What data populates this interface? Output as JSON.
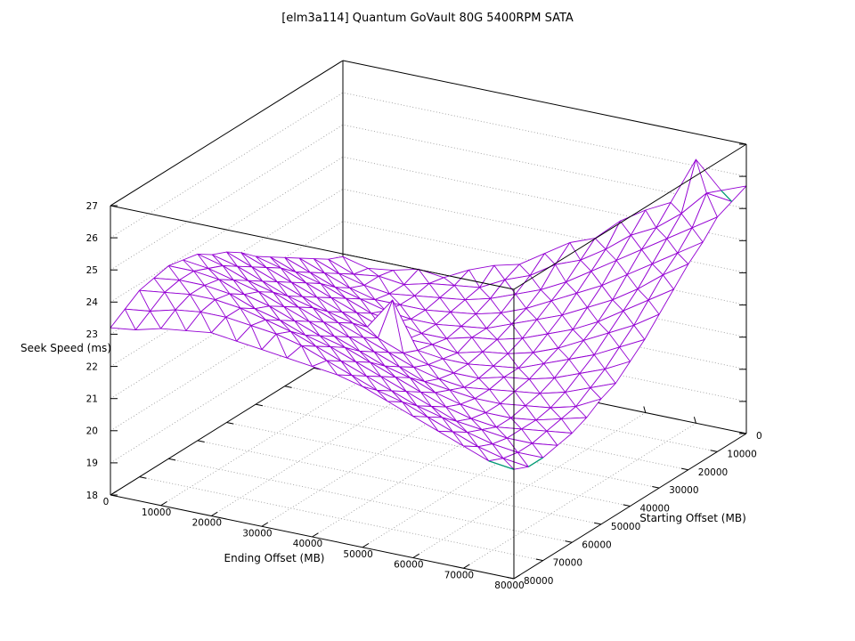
{
  "chart_data": {
    "type": "surface3d",
    "title": "[elm3a114] Quantum GoVault 80G 5400RPM SATA",
    "xlabel": "Ending Offset (MB)",
    "ylabel": "Starting Offset (MB)",
    "zlabel": "Seek Speed (ms)",
    "x_range": [
      0,
      80000
    ],
    "y_range": [
      0,
      80000
    ],
    "z_range": [
      18,
      27
    ],
    "x_ticks": [
      0,
      10000,
      20000,
      30000,
      40000,
      50000,
      60000,
      70000,
      80000
    ],
    "y_ticks": [
      0,
      10000,
      20000,
      30000,
      40000,
      50000,
      60000,
      70000,
      80000
    ],
    "z_ticks": [
      18,
      19,
      20,
      21,
      22,
      23,
      24,
      25,
      26,
      27
    ],
    "grid": true,
    "legend": "none",
    "x": [
      0,
      5000,
      10000,
      15000,
      20000,
      25000,
      30000,
      35000,
      40000,
      45000,
      50000,
      55000,
      60000,
      65000,
      70000,
      75000,
      80000
    ],
    "y": [
      0,
      5000,
      10000,
      15000,
      20000,
      25000,
      30000,
      35000,
      40000,
      45000,
      50000,
      55000,
      60000,
      65000,
      70000,
      75000,
      80000
    ],
    "z_rows_by_starting_offset": [
      [
        20.9,
        20.7,
        20.8,
        21.0,
        20.9,
        21.3,
        21.6,
        21.8,
        22.3,
        22.8,
        23.1,
        23.8,
        24.3,
        24.7,
        26.2,
        25.4,
        25.7
      ],
      [
        21.1,
        20.8,
        20.9,
        20.8,
        21.0,
        21.1,
        21.2,
        21.6,
        21.9,
        22.4,
        22.7,
        23.2,
        23.8,
        24.2,
        24.8,
        25.6,
        25.5
      ],
      [
        21.4,
        21.1,
        20.9,
        20.8,
        20.9,
        21.0,
        21.1,
        21.3,
        21.6,
        21.9,
        22.3,
        22.8,
        23.3,
        23.8,
        24.3,
        24.8,
        25.3
      ],
      [
        21.7,
        21.4,
        21.1,
        20.9,
        20.9,
        20.9,
        21.0,
        21.1,
        21.3,
        21.6,
        22.0,
        22.4,
        22.8,
        23.3,
        23.8,
        24.3,
        24.8
      ],
      [
        22.0,
        21.7,
        21.4,
        21.2,
        21.0,
        20.9,
        20.9,
        21.0,
        21.1,
        21.4,
        21.7,
        22.0,
        22.4,
        22.8,
        23.3,
        23.9,
        24.4
      ],
      [
        22.3,
        22.0,
        21.8,
        21.5,
        21.2,
        21.1,
        20.9,
        20.9,
        21.1,
        21.2,
        21.4,
        21.7,
        22.0,
        22.4,
        22.9,
        23.4,
        23.9
      ],
      [
        22.6,
        22.4,
        22.1,
        21.8,
        21.5,
        21.2,
        21.0,
        21.0,
        20.9,
        21.1,
        21.2,
        21.4,
        21.7,
        22.1,
        22.5,
        22.9,
        23.4
      ],
      [
        23.0,
        22.7,
        22.4,
        22.1,
        21.8,
        21.5,
        22.5,
        21.1,
        21.0,
        21.0,
        21.1,
        21.2,
        21.5,
        21.8,
        22.1,
        22.5,
        22.9
      ],
      [
        23.3,
        23.0,
        22.7,
        22.4,
        22.1,
        21.9,
        21.6,
        21.3,
        21.1,
        21.0,
        21.0,
        21.2,
        21.3,
        21.5,
        21.8,
        22.1,
        22.5
      ],
      [
        23.5,
        23.3,
        23.0,
        22.7,
        22.5,
        22.2,
        21.9,
        21.6,
        21.3,
        21.1,
        21.0,
        21.1,
        21.2,
        21.3,
        21.5,
        21.8,
        22.1
      ],
      [
        23.8,
        23.6,
        23.3,
        23.1,
        22.8,
        22.5,
        22.2,
        21.9,
        21.6,
        21.3,
        21.2,
        21.1,
        21.1,
        21.2,
        21.3,
        21.5,
        21.9
      ],
      [
        23.9,
        23.8,
        23.6,
        23.4,
        23.1,
        22.8,
        22.5,
        22.2,
        21.9,
        21.7,
        21.4,
        21.2,
        21.1,
        21.1,
        21.2,
        21.4,
        21.6
      ],
      [
        24.0,
        24.0,
        23.9,
        23.6,
        23.4,
        23.1,
        22.8,
        22.6,
        22.3,
        22.0,
        21.7,
        21.4,
        21.2,
        21.1,
        21.2,
        21.3,
        21.4
      ],
      [
        23.9,
        24.0,
        24.0,
        23.9,
        23.6,
        23.4,
        23.1,
        22.9,
        22.6,
        22.3,
        22.0,
        21.7,
        21.4,
        21.3,
        21.2,
        21.2,
        21.3
      ],
      [
        23.8,
        23.9,
        24.0,
        24.0,
        23.9,
        23.7,
        23.5,
        23.2,
        22.9,
        22.6,
        22.3,
        22.0,
        21.8,
        21.5,
        21.3,
        21.2,
        21.2
      ],
      [
        23.5,
        23.6,
        23.8,
        23.9,
        23.9,
        23.8,
        23.7,
        23.5,
        23.2,
        22.9,
        22.6,
        22.4,
        22.1,
        21.8,
        21.5,
        21.3,
        21.2
      ],
      [
        23.2,
        23.3,
        23.5,
        23.6,
        23.7,
        23.6,
        23.5,
        23.4,
        23.3,
        23.2,
        23.0,
        22.7,
        22.4,
        22.1,
        21.8,
        21.5,
        21.4
      ]
    ],
    "underside_edges": [
      [
        [
          15,
          0
        ],
        [
          16,
          1
        ]
      ],
      [
        [
          15,
          16
        ],
        [
          16,
          16
        ]
      ],
      [
        [
          16,
          14
        ],
        [
          16,
          15
        ]
      ]
    ],
    "colors": {
      "surface": "#9400d3",
      "underside": "#009e73",
      "grid": "#9e9e9e",
      "frame": "#000000",
      "background": "#ffffff"
    }
  }
}
